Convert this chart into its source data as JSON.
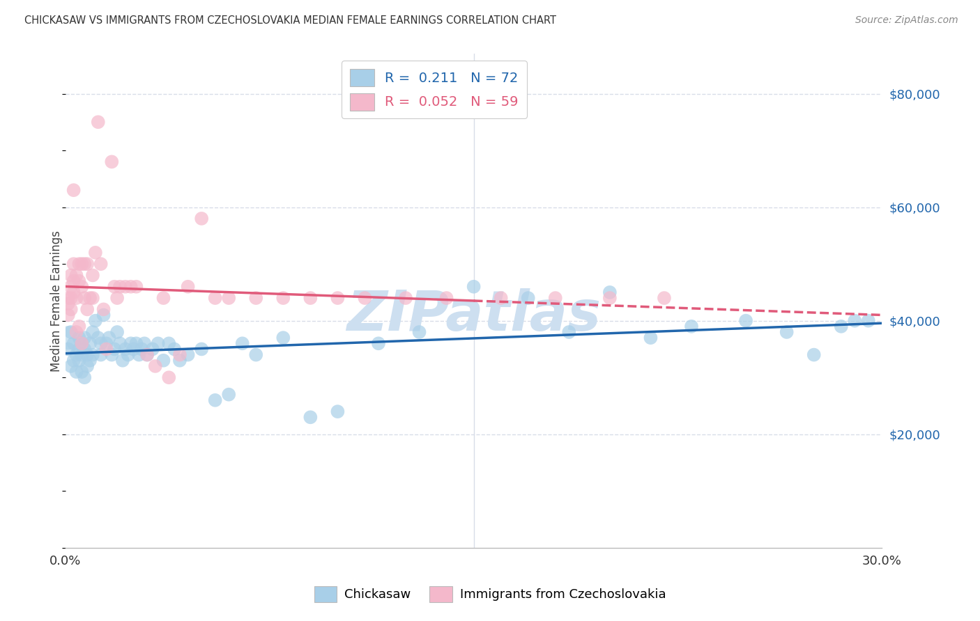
{
  "title": "CHICKASAW VS IMMIGRANTS FROM CZECHOSLOVAKIA MEDIAN FEMALE EARNINGS CORRELATION CHART",
  "source": "Source: ZipAtlas.com",
  "ylabel": "Median Female Earnings",
  "ylim": [
    0,
    87000
  ],
  "xlim": [
    0.0,
    0.3
  ],
  "blue_color": "#a8cfe8",
  "pink_color": "#f4b8cb",
  "blue_line_color": "#2166ac",
  "pink_line_color": "#e05a7a",
  "watermark": "ZIPatlas",
  "watermark_color": "#cddff0",
  "background_color": "#ffffff",
  "grid_color": "#d8dde8",
  "blue_x": [
    0.001,
    0.002,
    0.002,
    0.003,
    0.003,
    0.004,
    0.004,
    0.005,
    0.005,
    0.005,
    0.006,
    0.006,
    0.006,
    0.007,
    0.007,
    0.007,
    0.008,
    0.008,
    0.009,
    0.009,
    0.01,
    0.01,
    0.011,
    0.012,
    0.013,
    0.013,
    0.014,
    0.015,
    0.016,
    0.017,
    0.018,
    0.019,
    0.02,
    0.021,
    0.022,
    0.023,
    0.024,
    0.025,
    0.026,
    0.027,
    0.028,
    0.029,
    0.03,
    0.032,
    0.034,
    0.036,
    0.038,
    0.04,
    0.042,
    0.045,
    0.05,
    0.055,
    0.06,
    0.065,
    0.07,
    0.08,
    0.09,
    0.1,
    0.115,
    0.13,
    0.15,
    0.17,
    0.185,
    0.2,
    0.215,
    0.23,
    0.25,
    0.265,
    0.275,
    0.285,
    0.29,
    0.295
  ],
  "blue_y": [
    35000,
    38000,
    32000,
    36000,
    33000,
    34000,
    31000,
    35000,
    33000,
    37000,
    34000,
    36000,
    31000,
    35000,
    30000,
    37000,
    34000,
    32000,
    33000,
    36000,
    38000,
    34000,
    40000,
    37000,
    36000,
    34000,
    41000,
    36000,
    37000,
    34000,
    35000,
    38000,
    36000,
    33000,
    35000,
    34000,
    36000,
    35000,
    36000,
    34000,
    35000,
    36000,
    34000,
    35000,
    36000,
    33000,
    36000,
    35000,
    33000,
    34000,
    35000,
    26000,
    27000,
    36000,
    34000,
    37000,
    23000,
    24000,
    36000,
    38000,
    46000,
    44000,
    38000,
    45000,
    37000,
    39000,
    40000,
    38000,
    34000,
    39000,
    40000,
    40000
  ],
  "pink_x": [
    0.001,
    0.001,
    0.001,
    0.002,
    0.002,
    0.002,
    0.002,
    0.003,
    0.003,
    0.003,
    0.003,
    0.004,
    0.004,
    0.004,
    0.005,
    0.005,
    0.005,
    0.006,
    0.006,
    0.006,
    0.007,
    0.007,
    0.008,
    0.008,
    0.009,
    0.01,
    0.01,
    0.011,
    0.012,
    0.013,
    0.014,
    0.015,
    0.017,
    0.018,
    0.019,
    0.02,
    0.022,
    0.024,
    0.026,
    0.03,
    0.033,
    0.036,
    0.038,
    0.042,
    0.045,
    0.05,
    0.055,
    0.06,
    0.07,
    0.08,
    0.09,
    0.1,
    0.11,
    0.125,
    0.14,
    0.16,
    0.18,
    0.2,
    0.22
  ],
  "pink_y": [
    44000,
    41000,
    43000,
    48000,
    46000,
    44000,
    42000,
    63000,
    50000,
    47000,
    45000,
    48000,
    44000,
    38000,
    50000,
    47000,
    39000,
    50000,
    46000,
    36000,
    50000,
    44000,
    50000,
    42000,
    44000,
    48000,
    44000,
    52000,
    75000,
    50000,
    42000,
    35000,
    68000,
    46000,
    44000,
    46000,
    46000,
    46000,
    46000,
    34000,
    32000,
    44000,
    30000,
    34000,
    46000,
    58000,
    44000,
    44000,
    44000,
    44000,
    44000,
    44000,
    44000,
    44000,
    44000,
    44000,
    44000,
    44000,
    44000
  ]
}
